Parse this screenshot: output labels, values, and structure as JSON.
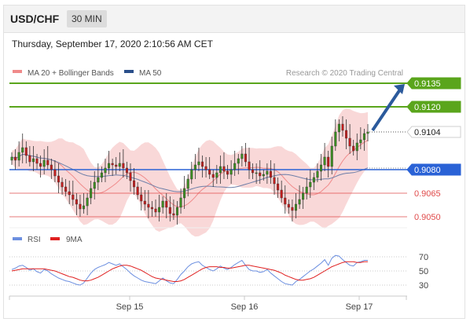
{
  "header": {
    "symbol": "USD/CHF",
    "timeframe": "30 MIN"
  },
  "timestamp": "Thursday, September 17, 2020 2:10:56 AM CET",
  "legend": {
    "ma20": "MA 20 + Bollinger Bands",
    "ma50": "MA 50",
    "credit": "Research © 2020 Trading Central",
    "rsi": "RSI",
    "rsi_ma": "9MA"
  },
  "colors": {
    "resistance": "#5aa51c",
    "support": "#e04b4b",
    "pivot": "#2a62d6",
    "current": "#222222",
    "bollinger": "#f6c7c7",
    "ma20": "#f08a8a",
    "ma50": "#6e7fa8",
    "candle_up": "#3b8e21",
    "candle_down": "#c41d1d",
    "arrow": "#2b5a9c",
    "rsi": "#6c8fe0",
    "rsi_ma": "#e02020"
  },
  "chart_data": [
    {
      "type": "candlestick",
      "ylim": [
        0.9043,
        0.9148
      ],
      "x_tick_labels": [
        "Sep 15",
        "Sep 16",
        "Sep 17"
      ],
      "levels": [
        {
          "label": "0.9135",
          "value": 0.9135,
          "kind": "resistance"
        },
        {
          "label": "0.9120",
          "value": 0.912,
          "kind": "resistance"
        },
        {
          "label": "0.9104",
          "value": 0.9104,
          "kind": "current"
        },
        {
          "label": "0.9080",
          "value": 0.908,
          "kind": "pivot"
        },
        {
          "label": "0.9065",
          "value": 0.9065,
          "kind": "support"
        },
        {
          "label": "0.9050",
          "value": 0.905,
          "kind": "support"
        }
      ],
      "arrow": {
        "from": 0.9104,
        "to": 0.9135,
        "direction": "up"
      },
      "closes": [
        0.9088,
        0.9086,
        0.9091,
        0.9094,
        0.9089,
        0.9085,
        0.9087,
        0.9084,
        0.9082,
        0.9086,
        0.9083,
        0.908,
        0.9076,
        0.9072,
        0.9069,
        0.9066,
        0.9064,
        0.9061,
        0.9058,
        0.9055,
        0.9057,
        0.9062,
        0.9068,
        0.9072,
        0.9075,
        0.9078,
        0.9081,
        0.9084,
        0.9083,
        0.9082,
        0.9084,
        0.9081,
        0.9078,
        0.9073,
        0.9069,
        0.9064,
        0.906,
        0.9058,
        0.9056,
        0.9055,
        0.9053,
        0.9056,
        0.906,
        0.9056,
        0.9052,
        0.9051,
        0.9056,
        0.9062,
        0.9068,
        0.9074,
        0.908,
        0.9083,
        0.9085,
        0.9082,
        0.908,
        0.9077,
        0.9075,
        0.9078,
        0.9082,
        0.9079,
        0.9077,
        0.908,
        0.9084,
        0.9087,
        0.909,
        0.9085,
        0.908,
        0.9078,
        0.9078,
        0.9076,
        0.9077,
        0.9079,
        0.9075,
        0.9071,
        0.9067,
        0.9062,
        0.9058,
        0.9056,
        0.9054,
        0.9058,
        0.9061,
        0.9065,
        0.9069,
        0.9072,
        0.9075,
        0.9079,
        0.9083,
        0.9088,
        0.9082,
        0.9095,
        0.9104,
        0.9109,
        0.9105,
        0.91,
        0.9095,
        0.9092,
        0.9097,
        0.9099,
        0.9103,
        0.9104
      ]
    },
    {
      "type": "line",
      "ylim": [
        20,
        80
      ],
      "y_ticks": [
        30,
        50,
        70
      ],
      "series": [
        {
          "name": "RSI",
          "values": [
            52,
            54,
            57,
            58,
            55,
            51,
            53,
            49,
            47,
            52,
            50,
            46,
            43,
            40,
            38,
            36,
            35,
            33,
            31,
            30,
            33,
            40,
            47,
            52,
            55,
            57,
            59,
            62,
            60,
            58,
            60,
            56,
            52,
            47,
            43,
            40,
            37,
            35,
            34,
            33,
            32,
            36,
            40,
            36,
            33,
            32,
            38,
            45,
            50,
            56,
            60,
            62,
            63,
            58,
            55,
            52,
            50,
            53,
            57,
            54,
            52,
            55,
            59,
            62,
            65,
            58,
            52,
            50,
            50,
            48,
            49,
            52,
            47,
            43,
            39,
            35,
            32,
            31,
            30,
            35,
            38,
            42,
            46,
            50,
            53,
            57,
            61,
            66,
            58,
            68,
            72,
            71,
            66,
            62,
            58,
            57,
            62,
            63,
            65,
            65
          ]
        },
        {
          "name": "9MA",
          "values": [
            50,
            51,
            52,
            53,
            53,
            53,
            53,
            53,
            53,
            53,
            52,
            51,
            50,
            48,
            46,
            44,
            42,
            41,
            39,
            37,
            36,
            36,
            37,
            39,
            41,
            44,
            47,
            50,
            53,
            55,
            57,
            58,
            58,
            57,
            55,
            53,
            51,
            48,
            45,
            42,
            40,
            39,
            38,
            37,
            36,
            35,
            35,
            36,
            38,
            41,
            44,
            47,
            50,
            53,
            55,
            56,
            56,
            56,
            55,
            55,
            54,
            54,
            55,
            56,
            57,
            58,
            58,
            57,
            56,
            55,
            54,
            53,
            52,
            51,
            49,
            47,
            44,
            42,
            40,
            38,
            37,
            37,
            38,
            39,
            41,
            44,
            47,
            50,
            53,
            56,
            58,
            60,
            62,
            63,
            63,
            63,
            62,
            62,
            63,
            63
          ]
        }
      ]
    }
  ]
}
